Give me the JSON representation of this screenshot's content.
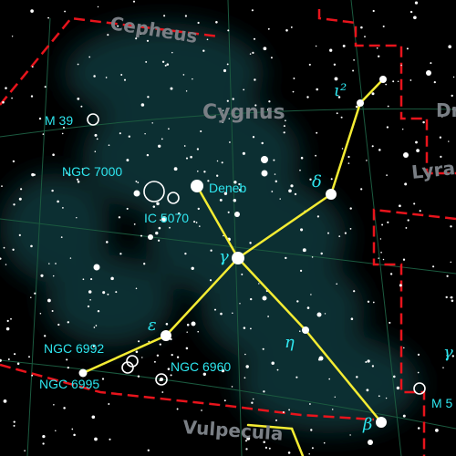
{
  "colors": {
    "background": "#000000",
    "milky_way": "#0f3236",
    "constellation_line": "#f4ec33",
    "boundary": "#e8141c",
    "grid": "#1b5a3f",
    "label": "#2ee6ef",
    "constellation_name": "#7a7f85"
  },
  "constellations": {
    "cepheus": "Cepheus",
    "cygnus": "Cygnus",
    "draco_partial": "Dr",
    "lyra": "Lyra",
    "vulpecula": "Vulpecula"
  },
  "stars": {
    "deneb": "Deneb"
  },
  "greek": {
    "gamma": "γ",
    "delta": "δ",
    "epsilon": "ε",
    "eta": "η",
    "beta": "β",
    "iota2": "ι²",
    "lyra_gamma_partial": "γ"
  },
  "dso": {
    "m39": "M 39",
    "ngc7000": "NGC 7000",
    "ic5070": "IC 5070",
    "ngc6992": "NGC 6992",
    "ngc6995": "NGC 6995",
    "ngc6960": "NGC 6960",
    "m57_partial": "M 5"
  }
}
